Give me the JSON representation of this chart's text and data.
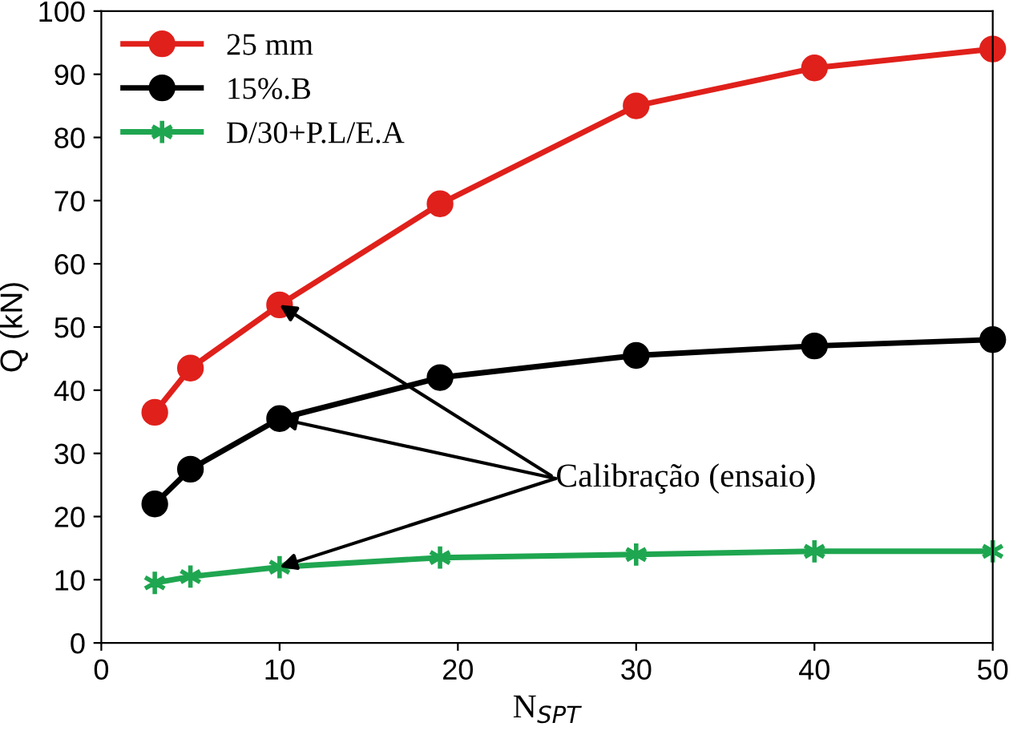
{
  "chart_data": {
    "type": "line",
    "xlabel": "N$_{SPT}$",
    "ylabel": "Q (kN)",
    "xlim": [
      0,
      50
    ],
    "xticks": [
      0,
      10,
      20,
      30,
      40,
      50
    ],
    "ylim": [
      0,
      100
    ],
    "yticks": [
      0,
      10,
      20,
      30,
      40,
      50,
      60,
      70,
      80,
      90,
      100
    ],
    "grid": false,
    "legend": "top left",
    "line_style": "solid",
    "series": [
      {
        "name": "25 mm",
        "color": "#e0201b",
        "marker": "circle",
        "x": [
          3,
          5,
          10,
          19,
          30,
          40,
          50
        ],
        "values": [
          36.5,
          43.5,
          53.5,
          69.5,
          85,
          91,
          94
        ]
      },
      {
        "name": "15%.B",
        "color": "#000000",
        "marker": "circle",
        "x": [
          3,
          5,
          10,
          19,
          30,
          40,
          50
        ],
        "values": [
          22,
          27.5,
          35.5,
          42,
          45.5,
          47,
          48
        ]
      },
      {
        "name": "D/30+P.L/E.A",
        "color": "#1fa650",
        "marker": "cross",
        "x": [
          3,
          5,
          10,
          19,
          30,
          40,
          50
        ],
        "values": [
          9.5,
          10.5,
          12,
          13.5,
          14,
          14.5,
          14.5
        ]
      }
    ],
    "annotations": [
      {
        "text": "Calibração (ensaio)",
        "x": 10,
        "y": 53.5
      }
    ]
  }
}
